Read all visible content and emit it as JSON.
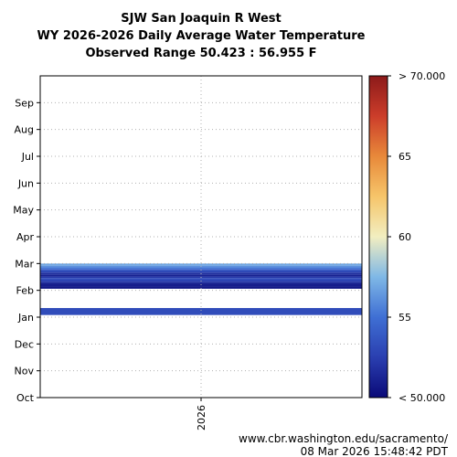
{
  "chart_data": {
    "type": "heatmap",
    "title_lines": [
      "SJW San Joaquin R West",
      "WY 2026-2026 Daily Average Water Temperature",
      "Observed Range 50.423 : 56.955 F"
    ],
    "x_tick_labels": [
      "2026"
    ],
    "y_tick_labels": [
      "Oct",
      "Nov",
      "Dec",
      "Jan",
      "Feb",
      "Mar",
      "Apr",
      "May",
      "Jun",
      "Jul",
      "Aug",
      "Sep"
    ],
    "grid": true,
    "colorbar": {
      "range": [
        50,
        70
      ],
      "tick_values": [
        50,
        55,
        60,
        65,
        70
      ],
      "tick_labels": [
        "< 50.000",
        "55",
        "60",
        "65",
        "> 70.000"
      ],
      "colors": [
        "#0a0a78",
        "#2a3fb0",
        "#3f6fd4",
        "#7fb8e6",
        "#f2eec0",
        "#f6c56a",
        "#e8893a",
        "#cc3d2a",
        "#8c1a1a"
      ]
    },
    "observed_range": [
      50.423,
      56.955
    ],
    "bands": [
      {
        "start_month": 3.08,
        "end_month": 3.34,
        "value": 53.2
      },
      {
        "start_month": 4.06,
        "end_month": 4.14,
        "value": 50.6
      },
      {
        "start_month": 4.14,
        "end_month": 4.26,
        "value": 50.9
      },
      {
        "start_month": 4.26,
        "end_month": 4.32,
        "value": 51.6
      },
      {
        "start_month": 4.32,
        "end_month": 4.38,
        "value": 52.4
      },
      {
        "start_month": 4.38,
        "end_month": 4.46,
        "value": 53.3
      },
      {
        "start_month": 4.46,
        "end_month": 4.52,
        "value": 52.2
      },
      {
        "start_month": 4.52,
        "end_month": 4.58,
        "value": 51.1
      },
      {
        "start_month": 4.58,
        "end_month": 4.66,
        "value": 51.7
      },
      {
        "start_month": 4.66,
        "end_month": 4.74,
        "value": 53.0
      },
      {
        "start_month": 4.74,
        "end_month": 4.8,
        "value": 54.0
      },
      {
        "start_month": 4.8,
        "end_month": 4.86,
        "value": 55.3
      },
      {
        "start_month": 4.86,
        "end_month": 4.92,
        "value": 56.2
      },
      {
        "start_month": 4.92,
        "end_month": 5.0,
        "value": 56.9
      }
    ]
  },
  "footer": {
    "url": "www.cbr.washington.edu/sacramento/",
    "timestamp": "08 Mar 2026 15:48:42 PDT"
  }
}
